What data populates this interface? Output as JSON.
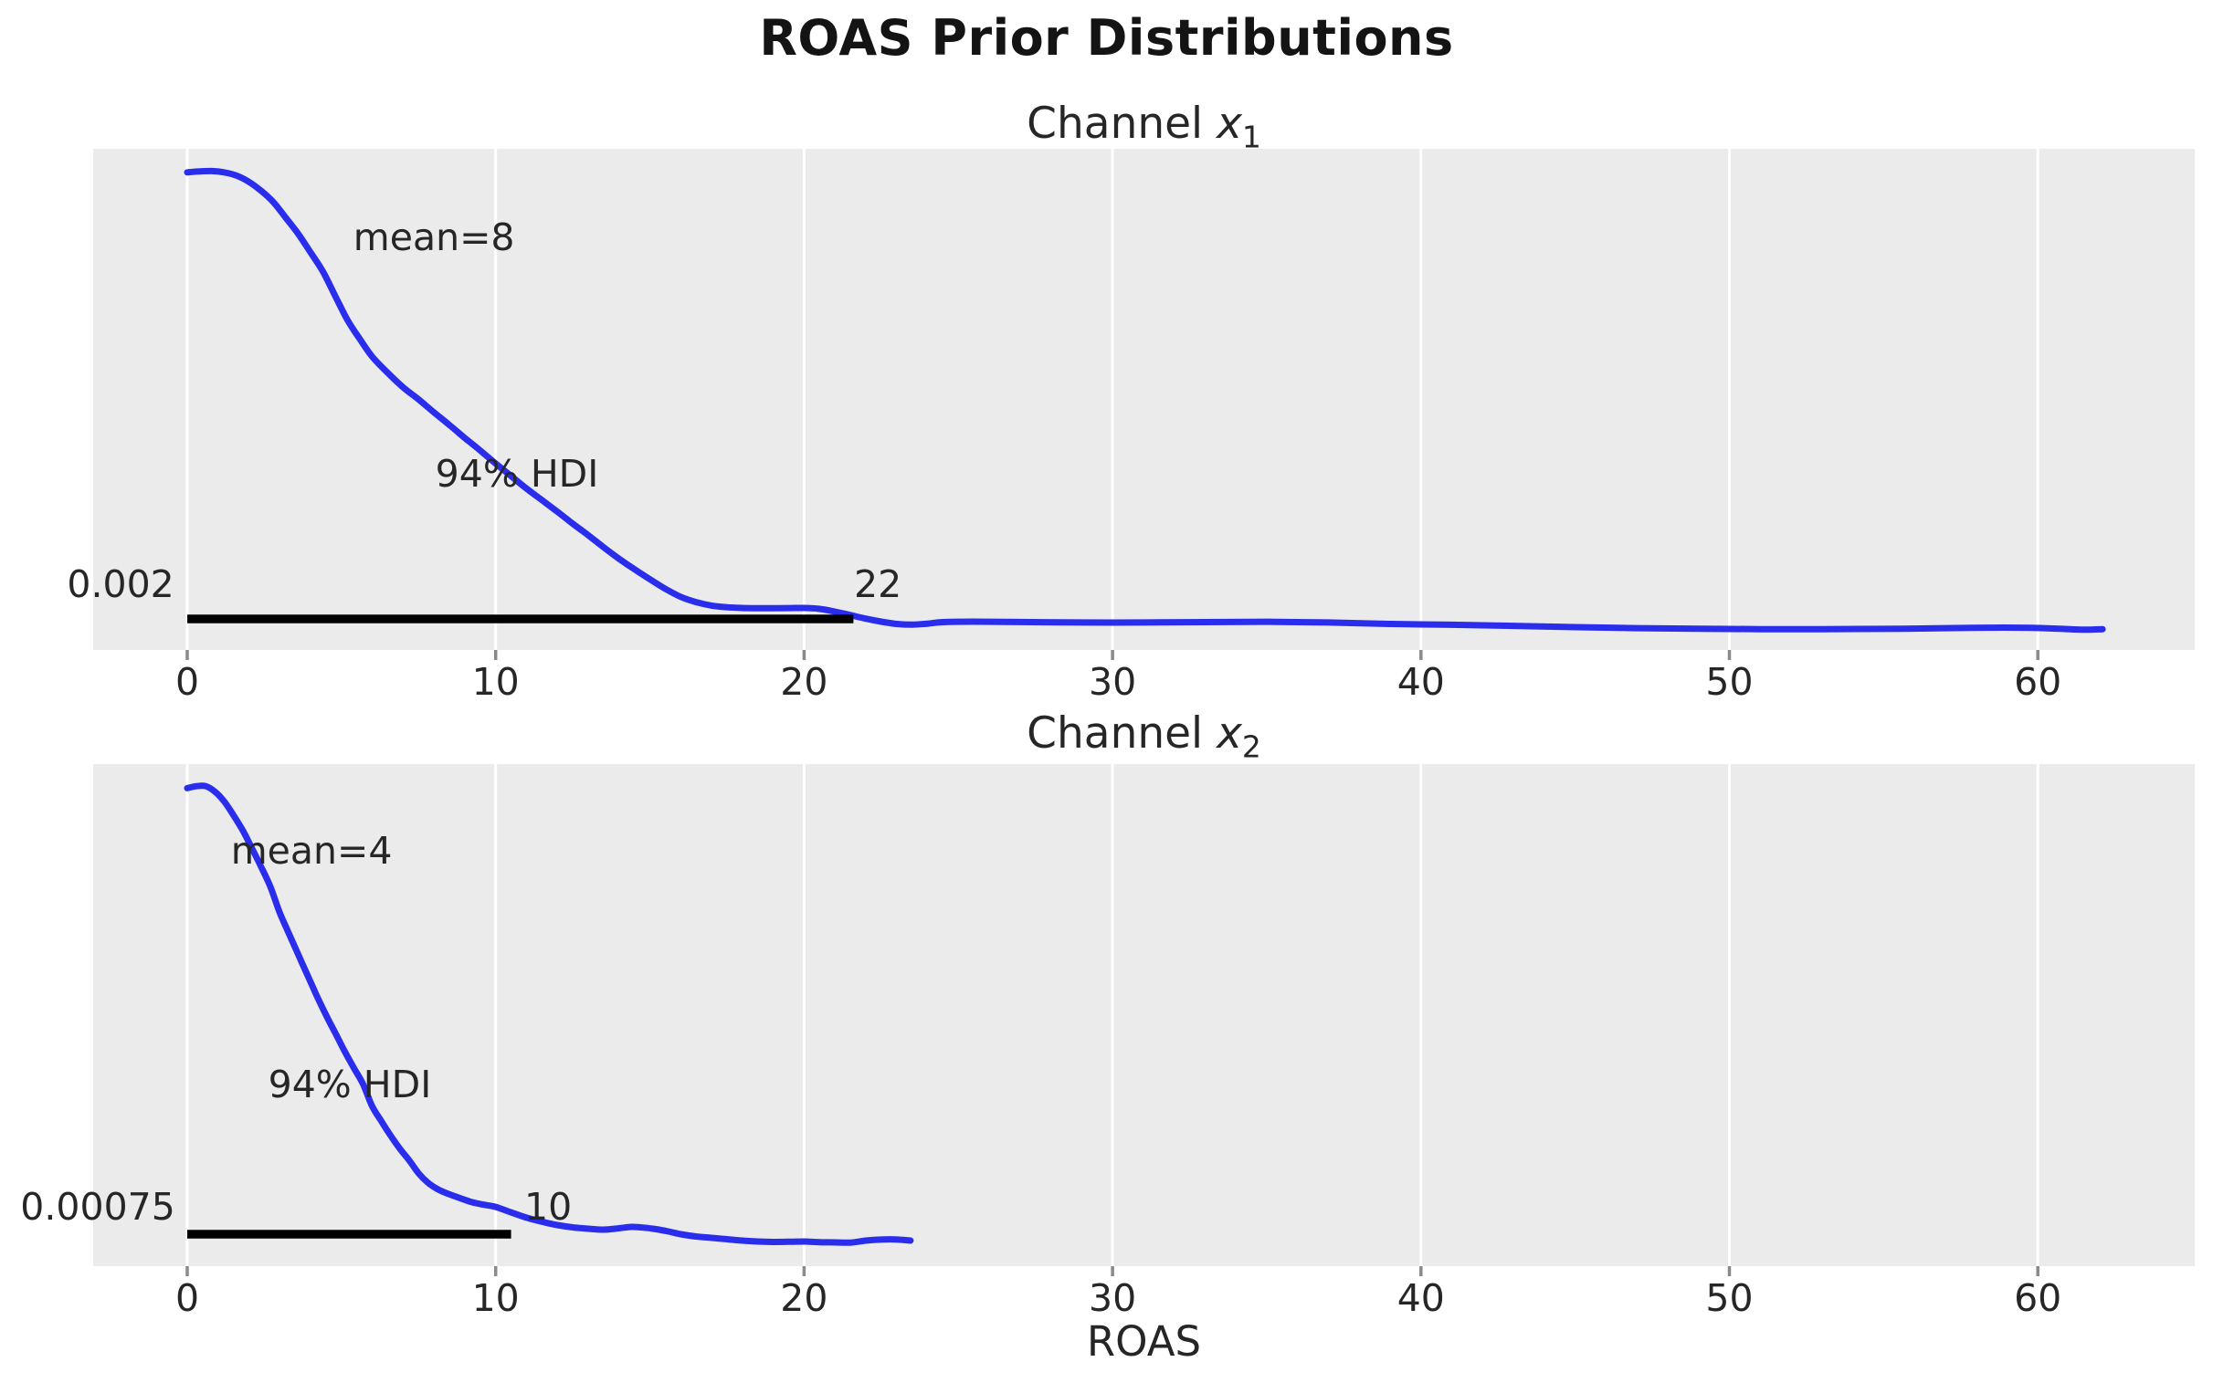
{
  "figure": {
    "title": "ROAS Prior Distributions",
    "xlabel": "ROAS"
  },
  "colors": {
    "curve": "#2a2eec",
    "axes_background": "#ebebeb",
    "gridline": "#ffffff",
    "hdi_bar": "#000000",
    "text": "#262626",
    "tick_mark": "#8a8a8a"
  },
  "chart_data": [
    {
      "type": "line",
      "title": "Channel x1",
      "title_parts": {
        "prefix": "Channel ",
        "variable": "x",
        "subscript": "1"
      },
      "xlabel": "ROAS",
      "x_ticks": [
        0,
        10,
        20,
        30,
        40,
        50,
        60
      ],
      "x_range": [
        -3.05,
        65.08
      ],
      "grid": "vertical-white",
      "legend": "none",
      "mean": 8,
      "mean_label": "mean=8",
      "hdi": {
        "probability": "94% HDI",
        "lower": 0.002,
        "upper": 22,
        "lower_label": "0.002",
        "upper_label": "22",
        "bar_from": 0.002,
        "bar_to": 21.6,
        "bar_height_frac": 0.062
      },
      "annotations": [
        {
          "text": "mean=8",
          "v": 8.0,
          "h": 0.823
        },
        {
          "text": "94% HDI",
          "v": 10.69,
          "h": 0.352
        },
        {
          "text": "0.002",
          "v": -2.16,
          "h": 0.131
        },
        {
          "text": "22",
          "v": 22.39,
          "h": 0.131
        }
      ],
      "series": [
        {
          "name": "prior-kde-x1",
          "points": [
            [
              0,
              0.953
            ],
            [
              0.4,
              0.955
            ],
            [
              0.8,
              0.9555
            ],
            [
              1.2,
              0.953
            ],
            [
              1.6,
              0.9465
            ],
            [
              2.0,
              0.934
            ],
            [
              2.4,
              0.916
            ],
            [
              2.8,
              0.893
            ],
            [
              3.2,
              0.862
            ],
            [
              3.6,
              0.83
            ],
            [
              4.0,
              0.793
            ],
            [
              4.4,
              0.755
            ],
            [
              4.8,
              0.706
            ],
            [
              5.2,
              0.658
            ],
            [
              5.6,
              0.62
            ],
            [
              6.0,
              0.585
            ],
            [
              6.5,
              0.553
            ],
            [
              7.0,
              0.524
            ],
            [
              7.5,
              0.5
            ],
            [
              8.0,
              0.474
            ],
            [
              8.5,
              0.449
            ],
            [
              9.0,
              0.423
            ],
            [
              9.5,
              0.398
            ],
            [
              10.0,
              0.372
            ],
            [
              10.5,
              0.347
            ],
            [
              11.0,
              0.322
            ],
            [
              11.5,
              0.299
            ],
            [
              12.0,
              0.276
            ],
            [
              12.5,
              0.252
            ],
            [
              13.0,
              0.229
            ],
            [
              13.5,
              0.205
            ],
            [
              14.0,
              0.182
            ],
            [
              14.5,
              0.161
            ],
            [
              15.0,
              0.141
            ],
            [
              15.5,
              0.122
            ],
            [
              16.0,
              0.106
            ],
            [
              16.5,
              0.0955
            ],
            [
              17.0,
              0.0885
            ],
            [
              17.5,
              0.0853
            ],
            [
              18.0,
              0.0838
            ],
            [
              18.5,
              0.0833
            ],
            [
              19.0,
              0.0833
            ],
            [
              19.5,
              0.0836
            ],
            [
              20.0,
              0.0838
            ],
            [
              20.5,
              0.082
            ],
            [
              21.0,
              0.0765
            ],
            [
              21.5,
              0.0695
            ],
            [
              22.0,
              0.0625
            ],
            [
              22.5,
              0.0565
            ],
            [
              23.0,
              0.052
            ],
            [
              23.5,
              0.0505
            ],
            [
              24.0,
              0.0525
            ],
            [
              24.5,
              0.0555
            ],
            [
              25.5,
              0.0565
            ],
            [
              27,
              0.0557
            ],
            [
              29,
              0.0548
            ],
            [
              31,
              0.0548
            ],
            [
              33,
              0.0555
            ],
            [
              35,
              0.0562
            ],
            [
              37,
              0.0548
            ],
            [
              39,
              0.052
            ],
            [
              41,
              0.0503
            ],
            [
              43,
              0.048
            ],
            [
              45,
              0.0455
            ],
            [
              47,
              0.0436
            ],
            [
              49,
              0.0425
            ],
            [
              51,
              0.0416
            ],
            [
              53,
              0.0415
            ],
            [
              55,
              0.042
            ],
            [
              57,
              0.0435
            ],
            [
              58.5,
              0.0445
            ],
            [
              59.8,
              0.044
            ],
            [
              60.8,
              0.042
            ],
            [
              61.5,
              0.0405
            ],
            [
              62.1,
              0.0415
            ]
          ]
        }
      ]
    },
    {
      "type": "line",
      "title": "Channel x2",
      "title_parts": {
        "prefix": "Channel ",
        "variable": "x",
        "subscript": "2"
      },
      "xlabel": "ROAS",
      "x_ticks": [
        0,
        10,
        20,
        30,
        40,
        50,
        60
      ],
      "x_range": [
        -3.05,
        65.08
      ],
      "grid": "vertical-white",
      "legend": "none",
      "mean": 4,
      "mean_label": "mean=4",
      "hdi": {
        "probability": "94% HDI",
        "lower": 0.00075,
        "upper": 10,
        "lower_label": "0.00075",
        "upper_label": "10",
        "bar_from": 0.00075,
        "bar_to": 10.5,
        "bar_height_frac": 0.0636
      },
      "annotations": [
        {
          "text": "mean=4",
          "v": 4.03,
          "h": 0.827
        },
        {
          "text": "94% HDI",
          "v": 5.27,
          "h": 0.362
        },
        {
          "text": "0.00075",
          "v": -2.9,
          "h": 0.118
        },
        {
          "text": "10",
          "v": 11.7,
          "h": 0.118
        }
      ],
      "series": [
        {
          "name": "prior-kde-x2",
          "points": [
            [
              0,
              0.952
            ],
            [
              0.3,
              0.956
            ],
            [
              0.6,
              0.956
            ],
            [
              0.9,
              0.945
            ],
            [
              1.2,
              0.9255
            ],
            [
              1.5,
              0.898
            ],
            [
              1.8,
              0.868
            ],
            [
              2.1,
              0.832
            ],
            [
              2.4,
              0.795
            ],
            [
              2.7,
              0.755
            ],
            [
              3.0,
              0.704
            ],
            [
              3.3,
              0.662
            ],
            [
              3.6,
              0.6205
            ],
            [
              3.9,
              0.5795
            ],
            [
              4.2,
              0.5385
            ],
            [
              4.5,
              0.5
            ],
            [
              4.8,
              0.4645
            ],
            [
              5.1,
              0.4285
            ],
            [
              5.4,
              0.395
            ],
            [
              5.7,
              0.3625
            ],
            [
              6.0,
              0.318
            ],
            [
              6.3,
              0.288
            ],
            [
              6.6,
              0.2595
            ],
            [
              6.9,
              0.2335
            ],
            [
              7.2,
              0.2105
            ],
            [
              7.5,
              0.185
            ],
            [
              7.8,
              0.1665
            ],
            [
              8.1,
              0.154
            ],
            [
              8.4,
              0.1455
            ],
            [
              8.8,
              0.1365
            ],
            [
              9.2,
              0.128
            ],
            [
              9.6,
              0.1225
            ],
            [
              10.0,
              0.118
            ],
            [
              10.5,
              0.107
            ],
            [
              11.0,
              0.0965
            ],
            [
              11.5,
              0.0885
            ],
            [
              12.0,
              0.0818
            ],
            [
              12.5,
              0.0773
            ],
            [
              13.0,
              0.0745
            ],
            [
              13.5,
              0.0727
            ],
            [
              14.0,
              0.0755
            ],
            [
              14.4,
              0.0782
            ],
            [
              14.8,
              0.0768
            ],
            [
              15.2,
              0.0736
            ],
            [
              15.6,
              0.0691
            ],
            [
              16.0,
              0.0636
            ],
            [
              16.5,
              0.059
            ],
            [
              17.0,
              0.0564
            ],
            [
              17.5,
              0.0536
            ],
            [
              18.0,
              0.0509
            ],
            [
              18.5,
              0.049
            ],
            [
              19.0,
              0.0482
            ],
            [
              19.5,
              0.0485
            ],
            [
              20.0,
              0.049
            ],
            [
              20.5,
              0.0478
            ],
            [
              21.0,
              0.0473
            ],
            [
              21.5,
              0.0469
            ],
            [
              22.0,
              0.0509
            ],
            [
              22.4,
              0.0528
            ],
            [
              22.8,
              0.0535
            ],
            [
              23.1,
              0.0528
            ],
            [
              23.45,
              0.0509
            ]
          ]
        }
      ]
    }
  ]
}
